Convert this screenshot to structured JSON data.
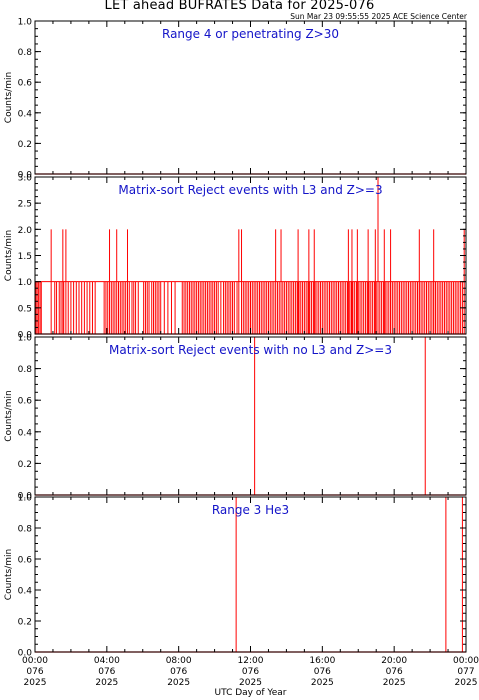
{
  "title": "LET ahead BUFRATES Data for 2025-076",
  "timestamp": "Sun Mar 23 09:55:55 2025 ACE Science Center",
  "colors": {
    "data": "#ff0000",
    "panel_title": "#1414c8",
    "axes": "#000000"
  },
  "chart_data": [
    {
      "type": "line",
      "title": "Range 4 or   penetrating Z>30",
      "ylabel": "Counts/min",
      "ylim": [
        0,
        1.0
      ],
      "yticks": [
        0.0,
        0.2,
        0.4,
        0.6,
        0.8,
        1.0
      ],
      "xlim": [
        0,
        24
      ],
      "baseline": 0,
      "spikes": []
    },
    {
      "type": "line",
      "title": "Matrix-sort Reject events with L3 and Z>=3",
      "ylabel": "Counts/min",
      "ylim": [
        0,
        3.0
      ],
      "yticks": [
        0.0,
        0.5,
        1.0,
        1.5,
        2.0,
        2.5,
        3.0
      ],
      "xlim": [
        0,
        24
      ],
      "baseline": 0,
      "spikes": [
        {
          "x": 0.05,
          "y": 1
        },
        {
          "x": 0.12,
          "y": 1
        },
        {
          "x": 0.2,
          "y": 1
        },
        {
          "x": 0.28,
          "y": 1
        },
        {
          "x": 0.35,
          "y": 1
        },
        {
          "x": 0.9,
          "y": 2
        },
        {
          "x": 1.1,
          "y": 1
        },
        {
          "x": 1.2,
          "y": 1
        },
        {
          "x": 1.35,
          "y": 1
        },
        {
          "x": 1.45,
          "y": 1
        },
        {
          "x": 1.55,
          "y": 2
        },
        {
          "x": 1.6,
          "y": 1
        },
        {
          "x": 1.72,
          "y": 2
        },
        {
          "x": 1.85,
          "y": 1
        },
        {
          "x": 2.0,
          "y": 1
        },
        {
          "x": 2.15,
          "y": 1
        },
        {
          "x": 2.3,
          "y": 1
        },
        {
          "x": 2.45,
          "y": 1
        },
        {
          "x": 2.6,
          "y": 1
        },
        {
          "x": 2.75,
          "y": 1
        },
        {
          "x": 2.9,
          "y": 1
        },
        {
          "x": 3.05,
          "y": 1
        },
        {
          "x": 3.2,
          "y": 1
        },
        {
          "x": 3.35,
          "y": 1
        },
        {
          "x": 3.85,
          "y": 1
        },
        {
          "x": 3.95,
          "y": 1
        },
        {
          "x": 4.05,
          "y": 1
        },
        {
          "x": 4.15,
          "y": 2
        },
        {
          "x": 4.25,
          "y": 1
        },
        {
          "x": 4.35,
          "y": 1
        },
        {
          "x": 4.45,
          "y": 1
        },
        {
          "x": 4.55,
          "y": 2
        },
        {
          "x": 4.65,
          "y": 1
        },
        {
          "x": 4.75,
          "y": 1
        },
        {
          "x": 4.85,
          "y": 1
        },
        {
          "x": 4.95,
          "y": 1
        },
        {
          "x": 5.05,
          "y": 1
        },
        {
          "x": 5.15,
          "y": 2
        },
        {
          "x": 5.25,
          "y": 1
        },
        {
          "x": 5.4,
          "y": 1
        },
        {
          "x": 5.5,
          "y": 1
        },
        {
          "x": 5.6,
          "y": 1
        },
        {
          "x": 5.75,
          "y": 1
        },
        {
          "x": 6.05,
          "y": 1
        },
        {
          "x": 6.15,
          "y": 1
        },
        {
          "x": 6.25,
          "y": 1
        },
        {
          "x": 6.35,
          "y": 1
        },
        {
          "x": 6.5,
          "y": 1
        },
        {
          "x": 6.6,
          "y": 1
        },
        {
          "x": 6.7,
          "y": 1
        },
        {
          "x": 6.8,
          "y": 1
        },
        {
          "x": 6.9,
          "y": 1
        },
        {
          "x": 7.0,
          "y": 1
        },
        {
          "x": 7.2,
          "y": 1
        },
        {
          "x": 7.4,
          "y": 1
        },
        {
          "x": 7.6,
          "y": 1
        },
        {
          "x": 7.8,
          "y": 1
        },
        {
          "x": 8.2,
          "y": 1
        },
        {
          "x": 8.3,
          "y": 1
        },
        {
          "x": 8.4,
          "y": 1
        },
        {
          "x": 8.5,
          "y": 1
        },
        {
          "x": 8.6,
          "y": 1
        },
        {
          "x": 8.7,
          "y": 1
        },
        {
          "x": 8.8,
          "y": 1
        },
        {
          "x": 8.9,
          "y": 1
        },
        {
          "x": 9.0,
          "y": 1
        },
        {
          "x": 9.1,
          "y": 1
        },
        {
          "x": 9.2,
          "y": 1
        },
        {
          "x": 9.3,
          "y": 1
        },
        {
          "x": 9.4,
          "y": 1
        },
        {
          "x": 9.5,
          "y": 1
        },
        {
          "x": 9.6,
          "y": 1
        },
        {
          "x": 9.7,
          "y": 1
        },
        {
          "x": 9.8,
          "y": 1
        },
        {
          "x": 9.9,
          "y": 1
        },
        {
          "x": 10.0,
          "y": 1
        },
        {
          "x": 10.1,
          "y": 1
        },
        {
          "x": 10.2,
          "y": 1
        },
        {
          "x": 10.35,
          "y": 1
        },
        {
          "x": 10.5,
          "y": 1
        },
        {
          "x": 10.6,
          "y": 1
        },
        {
          "x": 10.7,
          "y": 1
        },
        {
          "x": 10.8,
          "y": 1
        },
        {
          "x": 10.9,
          "y": 1
        },
        {
          "x": 11.0,
          "y": 1
        },
        {
          "x": 11.1,
          "y": 1
        },
        {
          "x": 11.25,
          "y": 1
        },
        {
          "x": 11.35,
          "y": 2
        },
        {
          "x": 11.5,
          "y": 2
        },
        {
          "x": 11.6,
          "y": 1
        },
        {
          "x": 11.7,
          "y": 1
        },
        {
          "x": 11.8,
          "y": 1
        },
        {
          "x": 11.9,
          "y": 1
        },
        {
          "x": 12.0,
          "y": 1
        },
        {
          "x": 12.1,
          "y": 1
        },
        {
          "x": 12.2,
          "y": 1
        },
        {
          "x": 12.3,
          "y": 1
        },
        {
          "x": 12.4,
          "y": 1
        },
        {
          "x": 12.5,
          "y": 1
        },
        {
          "x": 12.6,
          "y": 1
        },
        {
          "x": 12.7,
          "y": 1
        },
        {
          "x": 12.8,
          "y": 1
        },
        {
          "x": 12.9,
          "y": 1
        },
        {
          "x": 13.0,
          "y": 1
        },
        {
          "x": 13.1,
          "y": 1
        },
        {
          "x": 13.2,
          "y": 1
        },
        {
          "x": 13.3,
          "y": 1
        },
        {
          "x": 13.4,
          "y": 2
        },
        {
          "x": 13.5,
          "y": 1
        },
        {
          "x": 13.6,
          "y": 1
        },
        {
          "x": 13.7,
          "y": 2
        },
        {
          "x": 13.8,
          "y": 1
        },
        {
          "x": 13.9,
          "y": 1
        },
        {
          "x": 14.0,
          "y": 1
        },
        {
          "x": 14.1,
          "y": 1
        },
        {
          "x": 14.2,
          "y": 1
        },
        {
          "x": 14.3,
          "y": 1
        },
        {
          "x": 14.4,
          "y": 1
        },
        {
          "x": 14.5,
          "y": 1
        },
        {
          "x": 14.6,
          "y": 1
        },
        {
          "x": 14.7,
          "y": 1
        },
        {
          "x": 14.8,
          "y": 1
        },
        {
          "x": 14.9,
          "y": 1
        },
        {
          "x": 15.0,
          "y": 1
        },
        {
          "x": 15.1,
          "y": 1
        },
        {
          "x": 15.2,
          "y": 1
        },
        {
          "x": 15.3,
          "y": 1
        },
        {
          "x": 15.4,
          "y": 1
        },
        {
          "x": 15.5,
          "y": 1
        },
        {
          "x": 15.6,
          "y": 1
        },
        {
          "x": 15.7,
          "y": 1
        },
        {
          "x": 15.8,
          "y": 1
        },
        {
          "x": 15.9,
          "y": 1
        },
        {
          "x": 16.0,
          "y": 1
        },
        {
          "x": 16.1,
          "y": 1
        },
        {
          "x": 16.2,
          "y": 1
        },
        {
          "x": 16.3,
          "y": 1
        },
        {
          "x": 16.4,
          "y": 1
        },
        {
          "x": 16.5,
          "y": 1
        },
        {
          "x": 16.6,
          "y": 1
        },
        {
          "x": 16.7,
          "y": 1
        },
        {
          "x": 16.8,
          "y": 1
        },
        {
          "x": 16.9,
          "y": 1
        },
        {
          "x": 17.0,
          "y": 1
        },
        {
          "x": 17.1,
          "y": 1
        },
        {
          "x": 17.2,
          "y": 1
        },
        {
          "x": 17.3,
          "y": 1
        },
        {
          "x": 17.4,
          "y": 1
        },
        {
          "x": 17.5,
          "y": 1
        },
        {
          "x": 17.6,
          "y": 1
        },
        {
          "x": 17.7,
          "y": 1
        },
        {
          "x": 17.8,
          "y": 1
        },
        {
          "x": 17.9,
          "y": 1
        },
        {
          "x": 18.0,
          "y": 1
        },
        {
          "x": 18.1,
          "y": 1
        },
        {
          "x": 18.2,
          "y": 1
        },
        {
          "x": 18.3,
          "y": 1
        },
        {
          "x": 18.4,
          "y": 1
        },
        {
          "x": 18.5,
          "y": 1
        },
        {
          "x": 18.6,
          "y": 1
        },
        {
          "x": 18.7,
          "y": 1
        },
        {
          "x": 18.8,
          "y": 1
        },
        {
          "x": 18.9,
          "y": 1
        },
        {
          "x": 19.0,
          "y": 1
        },
        {
          "x": 19.1,
          "y": 1
        },
        {
          "x": 19.2,
          "y": 1
        },
        {
          "x": 19.3,
          "y": 1
        },
        {
          "x": 19.4,
          "y": 1
        },
        {
          "x": 19.5,
          "y": 1
        },
        {
          "x": 19.6,
          "y": 1
        },
        {
          "x": 19.7,
          "y": 1
        },
        {
          "x": 19.8,
          "y": 1
        },
        {
          "x": 19.9,
          "y": 1
        },
        {
          "x": 20.0,
          "y": 1
        },
        {
          "x": 20.1,
          "y": 1
        },
        {
          "x": 20.2,
          "y": 1
        },
        {
          "x": 20.3,
          "y": 1
        },
        {
          "x": 20.4,
          "y": 1
        },
        {
          "x": 20.5,
          "y": 1
        },
        {
          "x": 20.6,
          "y": 1
        },
        {
          "x": 20.7,
          "y": 1
        },
        {
          "x": 20.8,
          "y": 1
        },
        {
          "x": 20.9,
          "y": 1
        },
        {
          "x": 21.0,
          "y": 1
        },
        {
          "x": 21.1,
          "y": 1
        },
        {
          "x": 21.2,
          "y": 1
        },
        {
          "x": 21.3,
          "y": 1
        },
        {
          "x": 21.4,
          "y": 1
        },
        {
          "x": 21.5,
          "y": 1
        },
        {
          "x": 21.6,
          "y": 1
        },
        {
          "x": 21.7,
          "y": 1
        },
        {
          "x": 21.8,
          "y": 1
        },
        {
          "x": 21.9,
          "y": 1
        },
        {
          "x": 22.0,
          "y": 1
        },
        {
          "x": 22.1,
          "y": 1
        },
        {
          "x": 22.2,
          "y": 1
        },
        {
          "x": 22.3,
          "y": 1
        },
        {
          "x": 22.4,
          "y": 1
        },
        {
          "x": 22.5,
          "y": 1
        },
        {
          "x": 22.6,
          "y": 1
        },
        {
          "x": 22.7,
          "y": 1
        },
        {
          "x": 22.8,
          "y": 1
        },
        {
          "x": 22.9,
          "y": 1
        },
        {
          "x": 23.0,
          "y": 1
        },
        {
          "x": 23.1,
          "y": 1
        },
        {
          "x": 23.2,
          "y": 1
        },
        {
          "x": 23.3,
          "y": 1
        },
        {
          "x": 23.4,
          "y": 1
        },
        {
          "x": 23.5,
          "y": 1
        },
        {
          "x": 23.6,
          "y": 1
        },
        {
          "x": 23.7,
          "y": 1
        },
        {
          "x": 23.8,
          "y": 1
        },
        {
          "x": 23.9,
          "y": 2
        },
        {
          "x": 17.45,
          "y": 2
        },
        {
          "x": 17.65,
          "y": 2
        },
        {
          "x": 17.95,
          "y": 2
        },
        {
          "x": 18.55,
          "y": 2
        },
        {
          "x": 18.95,
          "y": 2
        },
        {
          "x": 19.1,
          "y": 3
        },
        {
          "x": 19.45,
          "y": 2
        },
        {
          "x": 19.8,
          "y": 2
        },
        {
          "x": 21.4,
          "y": 2
        },
        {
          "x": 22.2,
          "y": 2
        },
        {
          "x": 14.65,
          "y": 2
        },
        {
          "x": 15.25,
          "y": 2
        },
        {
          "x": 15.55,
          "y": 2
        }
      ]
    },
    {
      "type": "line",
      "title": "Matrix-sort Reject events with no L3 and Z>=3",
      "ylabel": "Counts/min",
      "ylim": [
        0,
        1.0
      ],
      "yticks": [
        0.0,
        0.2,
        0.4,
        0.6,
        0.8,
        1.0
      ],
      "xlim": [
        0,
        24
      ],
      "baseline": 0,
      "spikes": [
        {
          "x": 12.23,
          "y": 1
        },
        {
          "x": 21.73,
          "y": 1
        }
      ]
    },
    {
      "type": "line",
      "title": "Range 3 He3",
      "ylabel": "Counts/min",
      "ylim": [
        0,
        1.0
      ],
      "yticks": [
        0.0,
        0.2,
        0.4,
        0.6,
        0.8,
        1.0
      ],
      "xlim": [
        0,
        24
      ],
      "baseline": 0,
      "spikes": [
        {
          "x": 11.2,
          "y": 1
        },
        {
          "x": 22.88,
          "y": 1
        },
        {
          "x": 23.8,
          "y": 1
        }
      ]
    }
  ],
  "xaxis": {
    "title": "UTC Day of Year",
    "ticks": [
      {
        "time": "00:00",
        "doy": "076",
        "year": "2025"
      },
      {
        "time": "04:00",
        "doy": "076",
        "year": "2025"
      },
      {
        "time": "08:00",
        "doy": "076",
        "year": "2025"
      },
      {
        "time": "12:00",
        "doy": "076",
        "year": "2025"
      },
      {
        "time": "16:00",
        "doy": "076",
        "year": "2025"
      },
      {
        "time": "20:00",
        "doy": "076",
        "year": "2025"
      },
      {
        "time": "00:00",
        "doy": "077",
        "year": "2025"
      }
    ]
  }
}
